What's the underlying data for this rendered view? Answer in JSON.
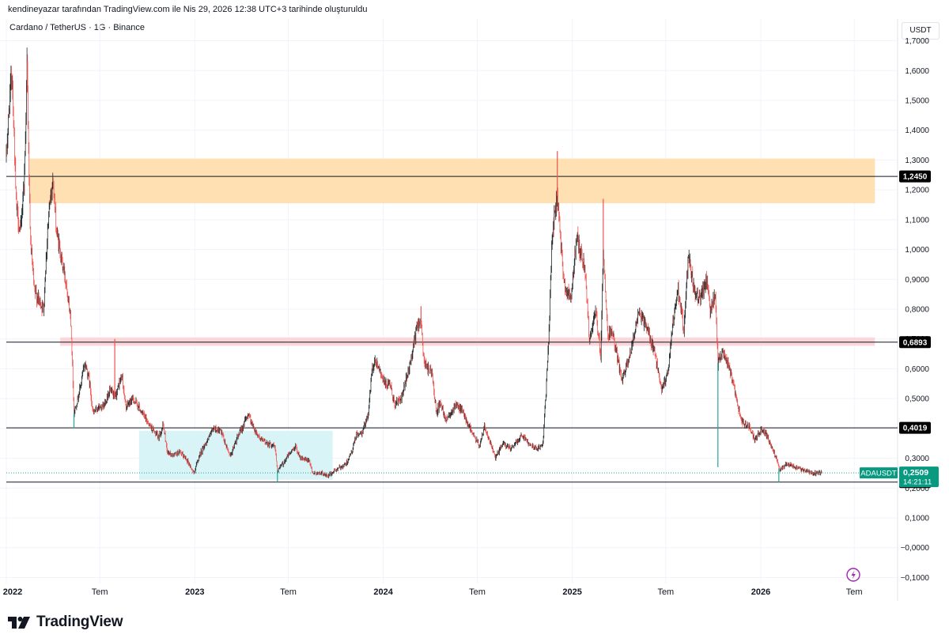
{
  "header": {
    "snapshot_line": "kendineyazar tarafından TradingView.com ile Nis 29, 2026 12:38 UTC+3 tarihinde oluşturuldu",
    "legend": "Cardano / TetherUS · 1G · Binance"
  },
  "currency_label": "USDT",
  "footer": {
    "brand": "TradingView",
    "logo_icon": "tradingview-logo-icon"
  },
  "colors": {
    "up": "#26a69a",
    "down": "#ef5350",
    "candle_dark": "#1f2a2a",
    "zone_orange": "#ffe0b2",
    "zone_pink": "#fcd7da",
    "zone_cyan": "#d8f4f7",
    "price_badge": "#089981",
    "level_line": "#131722",
    "flash_icon": "#9c27b0"
  },
  "chart_data": {
    "type": "candlestick",
    "title": "Cardano / TetherUS · 1G · Binance",
    "symbol": "ADAUSDT",
    "grid": true,
    "y_axis": {
      "side": "right",
      "ticks": [
        "1,7000",
        "1,6000",
        "1,5000",
        "1,4000",
        "1,3000",
        "1,2000",
        "1,1000",
        "1,0000",
        "0,9000",
        "0,8000",
        "0,7000",
        "0,6000",
        "0,5000",
        "0,4000",
        "0,3000",
        "0,2000",
        "0,1000",
        "−0,0000",
        "−0,1000"
      ],
      "range": [
        -0.12,
        1.72
      ]
    },
    "x_axis": {
      "range": [
        "2022-01-01",
        "2026-08-31"
      ],
      "ticks": [
        {
          "date": "2022-01-01",
          "label": "2022",
          "bold": true
        },
        {
          "date": "2022-07-01",
          "label": "Tem",
          "bold": false
        },
        {
          "date": "2023-01-01",
          "label": "2023",
          "bold": true
        },
        {
          "date": "2023-07-01",
          "label": "Tem",
          "bold": false
        },
        {
          "date": "2024-01-01",
          "label": "2024",
          "bold": true
        },
        {
          "date": "2024-07-01",
          "label": "Tem",
          "bold": false
        },
        {
          "date": "2025-01-01",
          "label": "2025",
          "bold": true
        },
        {
          "date": "2025-07-01",
          "label": "Tem",
          "bold": false
        },
        {
          "date": "2026-01-01",
          "label": "2026",
          "bold": true
        },
        {
          "date": "2026-07-01",
          "label": "Tem",
          "bold": false
        }
      ]
    },
    "horizontal_levels": [
      {
        "value": 1.245,
        "label": "1,2450"
      },
      {
        "value": 0.6893,
        "label": "0,6893"
      },
      {
        "value": 0.4019,
        "label": "0,4019"
      },
      {
        "value": 0.22,
        "label": "0,2200"
      }
    ],
    "zones": [
      {
        "name": "resistance-zone",
        "from": "2022-02-15",
        "to": "2026-08-10",
        "low": 1.155,
        "high": 1.305,
        "color": "#ffe0b2"
      },
      {
        "name": "mid-zone",
        "from": "2022-04-15",
        "to": "2026-08-10",
        "low": 0.677,
        "high": 0.705,
        "color": "#fcd7da"
      },
      {
        "name": "accumulation-zone",
        "from": "2022-09-15",
        "to": "2023-09-25",
        "low": 0.228,
        "high": 0.392,
        "color": "#d8f4f7"
      }
    ],
    "last_price": {
      "symbol": "ADAUSDT",
      "value": "0,2509",
      "countdown": "14:21:11",
      "numeric": 0.2509
    },
    "price_path": [
      [
        "2022-01-01",
        1.31
      ],
      [
        "2022-01-08",
        1.52
      ],
      [
        "2022-01-12",
        1.6
      ],
      [
        "2022-01-20",
        1.15
      ],
      [
        "2022-01-28",
        1.05
      ],
      [
        "2022-02-05",
        1.25
      ],
      [
        "2022-02-10",
        1.62
      ],
      [
        "2022-02-16",
        1.05
      ],
      [
        "2022-02-24",
        0.86
      ],
      [
        "2022-03-05",
        0.83
      ],
      [
        "2022-03-14",
        0.8
      ],
      [
        "2022-03-22",
        1.07
      ],
      [
        "2022-03-29",
        1.2
      ],
      [
        "2022-04-01",
        1.24
      ],
      [
        "2022-04-08",
        1.06
      ],
      [
        "2022-04-20",
        0.95
      ],
      [
        "2022-04-28",
        0.88
      ],
      [
        "2022-05-06",
        0.76
      ],
      [
        "2022-05-10",
        0.56
      ],
      [
        "2022-05-12",
        0.45
      ],
      [
        "2022-05-22",
        0.52
      ],
      [
        "2022-06-02",
        0.62
      ],
      [
        "2022-06-10",
        0.57
      ],
      [
        "2022-06-18",
        0.45
      ],
      [
        "2022-06-28",
        0.47
      ],
      [
        "2022-07-08",
        0.47
      ],
      [
        "2022-07-20",
        0.53
      ],
      [
        "2022-07-30",
        0.5
      ],
      [
        "2022-08-13",
        0.58
      ],
      [
        "2022-08-20",
        0.47
      ],
      [
        "2022-09-03",
        0.5
      ],
      [
        "2022-09-15",
        0.47
      ],
      [
        "2022-09-25",
        0.44
      ],
      [
        "2022-10-10",
        0.4
      ],
      [
        "2022-10-22",
        0.37
      ],
      [
        "2022-11-01",
        0.41
      ],
      [
        "2022-11-09",
        0.32
      ],
      [
        "2022-11-20",
        0.31
      ],
      [
        "2022-12-01",
        0.32
      ],
      [
        "2022-12-15",
        0.3
      ],
      [
        "2022-12-30",
        0.25
      ],
      [
        "2023-01-10",
        0.31
      ],
      [
        "2023-01-25",
        0.36
      ],
      [
        "2023-02-07",
        0.4
      ],
      [
        "2023-02-20",
        0.39
      ],
      [
        "2023-03-05",
        0.33
      ],
      [
        "2023-03-11",
        0.31
      ],
      [
        "2023-03-25",
        0.37
      ],
      [
        "2023-04-15",
        0.45
      ],
      [
        "2023-04-25",
        0.4
      ],
      [
        "2023-05-10",
        0.36
      ],
      [
        "2023-06-05",
        0.34
      ],
      [
        "2023-06-10",
        0.26
      ],
      [
        "2023-06-20",
        0.28
      ],
      [
        "2023-07-01",
        0.31
      ],
      [
        "2023-07-15",
        0.34
      ],
      [
        "2023-07-25",
        0.3
      ],
      [
        "2023-08-10",
        0.29
      ],
      [
        "2023-08-18",
        0.25
      ],
      [
        "2023-09-05",
        0.25
      ],
      [
        "2023-09-15",
        0.24
      ],
      [
        "2023-10-01",
        0.26
      ],
      [
        "2023-10-20",
        0.28
      ],
      [
        "2023-11-01",
        0.32
      ],
      [
        "2023-11-10",
        0.38
      ],
      [
        "2023-11-20",
        0.38
      ],
      [
        "2023-12-03",
        0.45
      ],
      [
        "2023-12-10",
        0.6
      ],
      [
        "2023-12-16",
        0.63
      ],
      [
        "2023-12-25",
        0.6
      ],
      [
        "2024-01-03",
        0.55
      ],
      [
        "2024-01-15",
        0.54
      ],
      [
        "2024-01-23",
        0.48
      ],
      [
        "2024-02-05",
        0.5
      ],
      [
        "2024-02-20",
        0.6
      ],
      [
        "2024-03-05",
        0.73
      ],
      [
        "2024-03-13",
        0.77
      ],
      [
        "2024-03-20",
        0.62
      ],
      [
        "2024-04-05",
        0.58
      ],
      [
        "2024-04-13",
        0.45
      ],
      [
        "2024-04-20",
        0.49
      ],
      [
        "2024-05-01",
        0.43
      ],
      [
        "2024-05-20",
        0.48
      ],
      [
        "2024-06-01",
        0.46
      ],
      [
        "2024-06-20",
        0.39
      ],
      [
        "2024-07-05",
        0.34
      ],
      [
        "2024-07-15",
        0.41
      ],
      [
        "2024-08-05",
        0.3
      ],
      [
        "2024-08-20",
        0.35
      ],
      [
        "2024-09-05",
        0.33
      ],
      [
        "2024-09-25",
        0.38
      ],
      [
        "2024-10-10",
        0.35
      ],
      [
        "2024-10-25",
        0.33
      ],
      [
        "2024-11-05",
        0.35
      ],
      [
        "2024-11-12",
        0.55
      ],
      [
        "2024-11-18",
        0.78
      ],
      [
        "2024-11-23",
        1.05
      ],
      [
        "2024-12-03",
        1.18
      ],
      [
        "2024-12-10",
        1.0
      ],
      [
        "2024-12-20",
        0.85
      ],
      [
        "2024-12-30",
        0.85
      ],
      [
        "2025-01-10",
        1.05
      ],
      [
        "2025-01-18",
        0.98
      ],
      [
        "2025-01-25",
        0.95
      ],
      [
        "2025-02-03",
        0.7
      ],
      [
        "2025-02-15",
        0.79
      ],
      [
        "2025-02-25",
        0.65
      ],
      [
        "2025-03-02",
        1.0
      ],
      [
        "2025-03-10",
        0.72
      ],
      [
        "2025-03-20",
        0.72
      ],
      [
        "2025-04-07",
        0.56
      ],
      [
        "2025-04-20",
        0.63
      ],
      [
        "2025-05-10",
        0.79
      ],
      [
        "2025-05-25",
        0.74
      ],
      [
        "2025-06-10",
        0.65
      ],
      [
        "2025-06-22",
        0.53
      ],
      [
        "2025-07-05",
        0.58
      ],
      [
        "2025-07-15",
        0.76
      ],
      [
        "2025-07-25",
        0.86
      ],
      [
        "2025-08-05",
        0.73
      ],
      [
        "2025-08-14",
        0.98
      ],
      [
        "2025-08-25",
        0.86
      ],
      [
        "2025-09-05",
        0.83
      ],
      [
        "2025-09-18",
        0.9
      ],
      [
        "2025-09-25",
        0.79
      ],
      [
        "2025-10-05",
        0.85
      ],
      [
        "2025-10-10",
        0.62
      ],
      [
        "2025-10-20",
        0.66
      ],
      [
        "2025-11-01",
        0.6
      ],
      [
        "2025-11-15",
        0.5
      ],
      [
        "2025-11-25",
        0.42
      ],
      [
        "2025-12-10",
        0.41
      ],
      [
        "2025-12-20",
        0.36
      ],
      [
        "2026-01-05",
        0.4
      ],
      [
        "2026-01-15",
        0.37
      ],
      [
        "2026-01-31",
        0.3
      ],
      [
        "2026-02-06",
        0.26
      ],
      [
        "2026-02-20",
        0.28
      ],
      [
        "2026-03-10",
        0.27
      ],
      [
        "2026-03-25",
        0.26
      ],
      [
        "2026-04-10",
        0.25
      ],
      [
        "2026-04-29",
        0.2509
      ]
    ],
    "spikes": [
      {
        "date": "2022-02-11",
        "price": 1.63
      },
      {
        "date": "2022-05-12",
        "price": 0.4
      },
      {
        "date": "2022-07-30",
        "price": 0.7
      },
      {
        "date": "2023-06-10",
        "price": 0.22
      },
      {
        "date": "2024-03-14",
        "price": 0.81
      },
      {
        "date": "2024-12-03",
        "price": 1.33
      },
      {
        "date": "2025-03-02",
        "price": 1.17
      },
      {
        "date": "2025-10-10",
        "price": 0.27
      },
      {
        "date": "2026-02-05",
        "price": 0.22
      }
    ]
  }
}
